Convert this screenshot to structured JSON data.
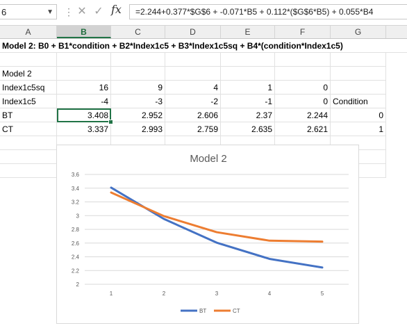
{
  "formula_bar": {
    "name_box": "6",
    "formula": "=2.244+0.377*$G$6 + -0.071*B5 + 0.112*($G$6*B5) + 0.055*B4"
  },
  "columns": [
    "A",
    "B",
    "C",
    "D",
    "E",
    "F",
    "G"
  ],
  "selected_column": "B",
  "sheet": {
    "title": "Model 2: B0 + B1*condition + B2*Index1c5 + B3*Index1c5sq + B4*(condition*Index1c5)",
    "model_label": "Model 2",
    "rows": [
      {
        "label": "Index1c5sq",
        "values": [
          "16",
          "9",
          "4",
          "1",
          "0"
        ],
        "extra": ""
      },
      {
        "label": "Index1c5",
        "values": [
          "-4",
          "-3",
          "-2",
          "-1",
          "0"
        ],
        "extra": "Condition"
      },
      {
        "label": "BT",
        "values": [
          "3.408",
          "2.952",
          "2.606",
          "2.37",
          "2.244"
        ],
        "extra": "0"
      },
      {
        "label": "CT",
        "values": [
          "3.337",
          "2.993",
          "2.759",
          "2.635",
          "2.621"
        ],
        "extra": "1"
      }
    ]
  },
  "colors": {
    "bt": "#4472c4",
    "ct": "#ed7d31",
    "selection": "#217346"
  },
  "chart_data": {
    "type": "line",
    "title": "Model 2",
    "x": [
      1,
      2,
      3,
      4,
      5
    ],
    "categories": [
      "1",
      "2",
      "3",
      "4",
      "5"
    ],
    "series": [
      {
        "name": "BT",
        "values": [
          3.408,
          2.952,
          2.606,
          2.37,
          2.244
        ]
      },
      {
        "name": "CT",
        "values": [
          3.337,
          2.993,
          2.759,
          2.635,
          2.621
        ]
      }
    ],
    "ylim": [
      2,
      3.6
    ],
    "yticks": [
      "2",
      "2.2",
      "2.4",
      "2.6",
      "2.8",
      "3",
      "3.2",
      "3.4",
      "3.6"
    ],
    "grid": true,
    "legend": "bottom"
  }
}
